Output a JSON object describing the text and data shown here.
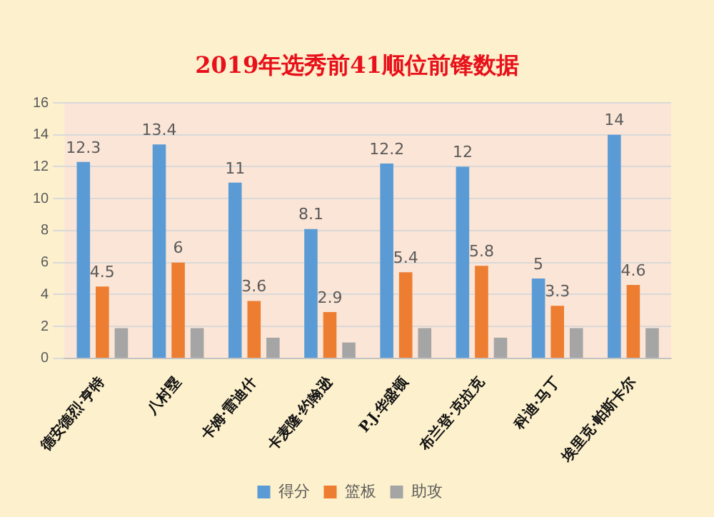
{
  "chart_data": {
    "type": "bar",
    "title": "2019年选秀前41顺位前锋数据",
    "categories": [
      "德安德烈·亨特",
      "八村塁",
      "卡姆·雷迪什",
      "卡麦隆·约翰逊",
      "P.J.华盛顿",
      "布兰登·克拉克",
      "科迪·马丁",
      "埃里克·帕斯卡尔"
    ],
    "series": [
      {
        "name": "得分",
        "color": "#5b9bd5",
        "values": [
          12.3,
          13.4,
          11,
          8.1,
          12.2,
          12,
          5,
          14
        ],
        "value_labels": [
          "12.3",
          "13.4",
          "11",
          "8.1",
          "12.2",
          "12",
          "5",
          "14"
        ]
      },
      {
        "name": "篮板",
        "color": "#ed7d31",
        "values": [
          4.5,
          6,
          3.6,
          2.9,
          5.4,
          5.8,
          3.3,
          4.6
        ],
        "value_labels": [
          "4.5",
          "6",
          "3.6",
          "2.9",
          "5.4",
          "5.8",
          "3.3",
          "4.6"
        ]
      },
      {
        "name": "助攻",
        "color": "#a5a5a5",
        "values": [
          1.9,
          1.9,
          1.3,
          1.0,
          1.9,
          1.3,
          1.9,
          1.9
        ]
      }
    ],
    "ylim": [
      0,
      16
    ],
    "yticks": [
      0,
      2,
      4,
      6,
      8,
      10,
      12,
      14,
      16
    ],
    "grid": "y",
    "legend": "bottom"
  }
}
